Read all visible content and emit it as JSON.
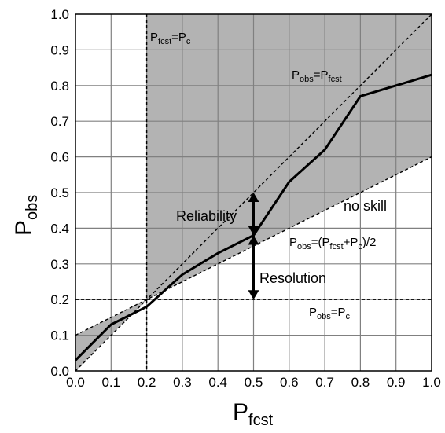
{
  "chart_data": {
    "type": "line",
    "xlabel": {
      "main": "P",
      "sub": "fcst"
    },
    "ylabel": {
      "main": "P",
      "sub": "obs"
    },
    "xlim": [
      0,
      1
    ],
    "ylim": [
      0,
      1
    ],
    "xticks": [
      "0.0",
      "0.1",
      "0.2",
      "0.3",
      "0.4",
      "0.5",
      "0.6",
      "0.7",
      "0.8",
      "0.9",
      "1.0"
    ],
    "yticks": [
      "0.0",
      "0.1",
      "0.2",
      "0.3",
      "0.4",
      "0.5",
      "0.6",
      "0.7",
      "0.8",
      "0.9",
      "1.0"
    ],
    "grid": true,
    "climatology": 0.2,
    "reliability_curve": {
      "x": [
        0.0,
        0.1,
        0.2,
        0.3,
        0.4,
        0.5,
        0.6,
        0.7,
        0.8,
        0.9,
        1.0
      ],
      "y": [
        0.03,
        0.13,
        0.18,
        0.27,
        0.33,
        0.38,
        0.53,
        0.62,
        0.77,
        0.8,
        0.83
      ]
    },
    "reference_lines": {
      "perfect": {
        "from": [
          0,
          0
        ],
        "to": [
          1,
          1
        ]
      },
      "no_skill": {
        "from": [
          0,
          0.1
        ],
        "to": [
          1,
          0.6
        ]
      },
      "climatology_horizontal": {
        "y": 0.2
      },
      "climatology_vertical": {
        "x": 0.2
      }
    },
    "arrows": {
      "reliability": {
        "x": 0.5,
        "y_from": 0.38,
        "y_to": 0.5
      },
      "resolution": {
        "x": 0.5,
        "y_from": 0.38,
        "y_to": 0.2
      }
    },
    "colors": {
      "shade": "#b3b3b3",
      "grid": "#808080",
      "curve": "#000000"
    }
  },
  "annotations": {
    "fcst_eq_c": {
      "p1": "P",
      "s1": "fcst",
      "mid": "=P",
      "s2": "c",
      "tail": ""
    },
    "obs_eq_fcst": {
      "p1": "P",
      "s1": "obs",
      "mid": "=P",
      "s2": "fcst",
      "tail": ""
    },
    "no_skill": "no skill",
    "no_skill_eq": {
      "p1": "P",
      "s1": "obs",
      "mid": "=(P",
      "s2": "fcst",
      "mid2": "+P",
      "s3": "c",
      "tail": ")/2"
    },
    "obs_eq_c": {
      "p1": "P",
      "s1": "obs",
      "mid": "=P",
      "s2": "c",
      "tail": ""
    },
    "reliability": "Reliability",
    "resolution": "Resolution"
  }
}
